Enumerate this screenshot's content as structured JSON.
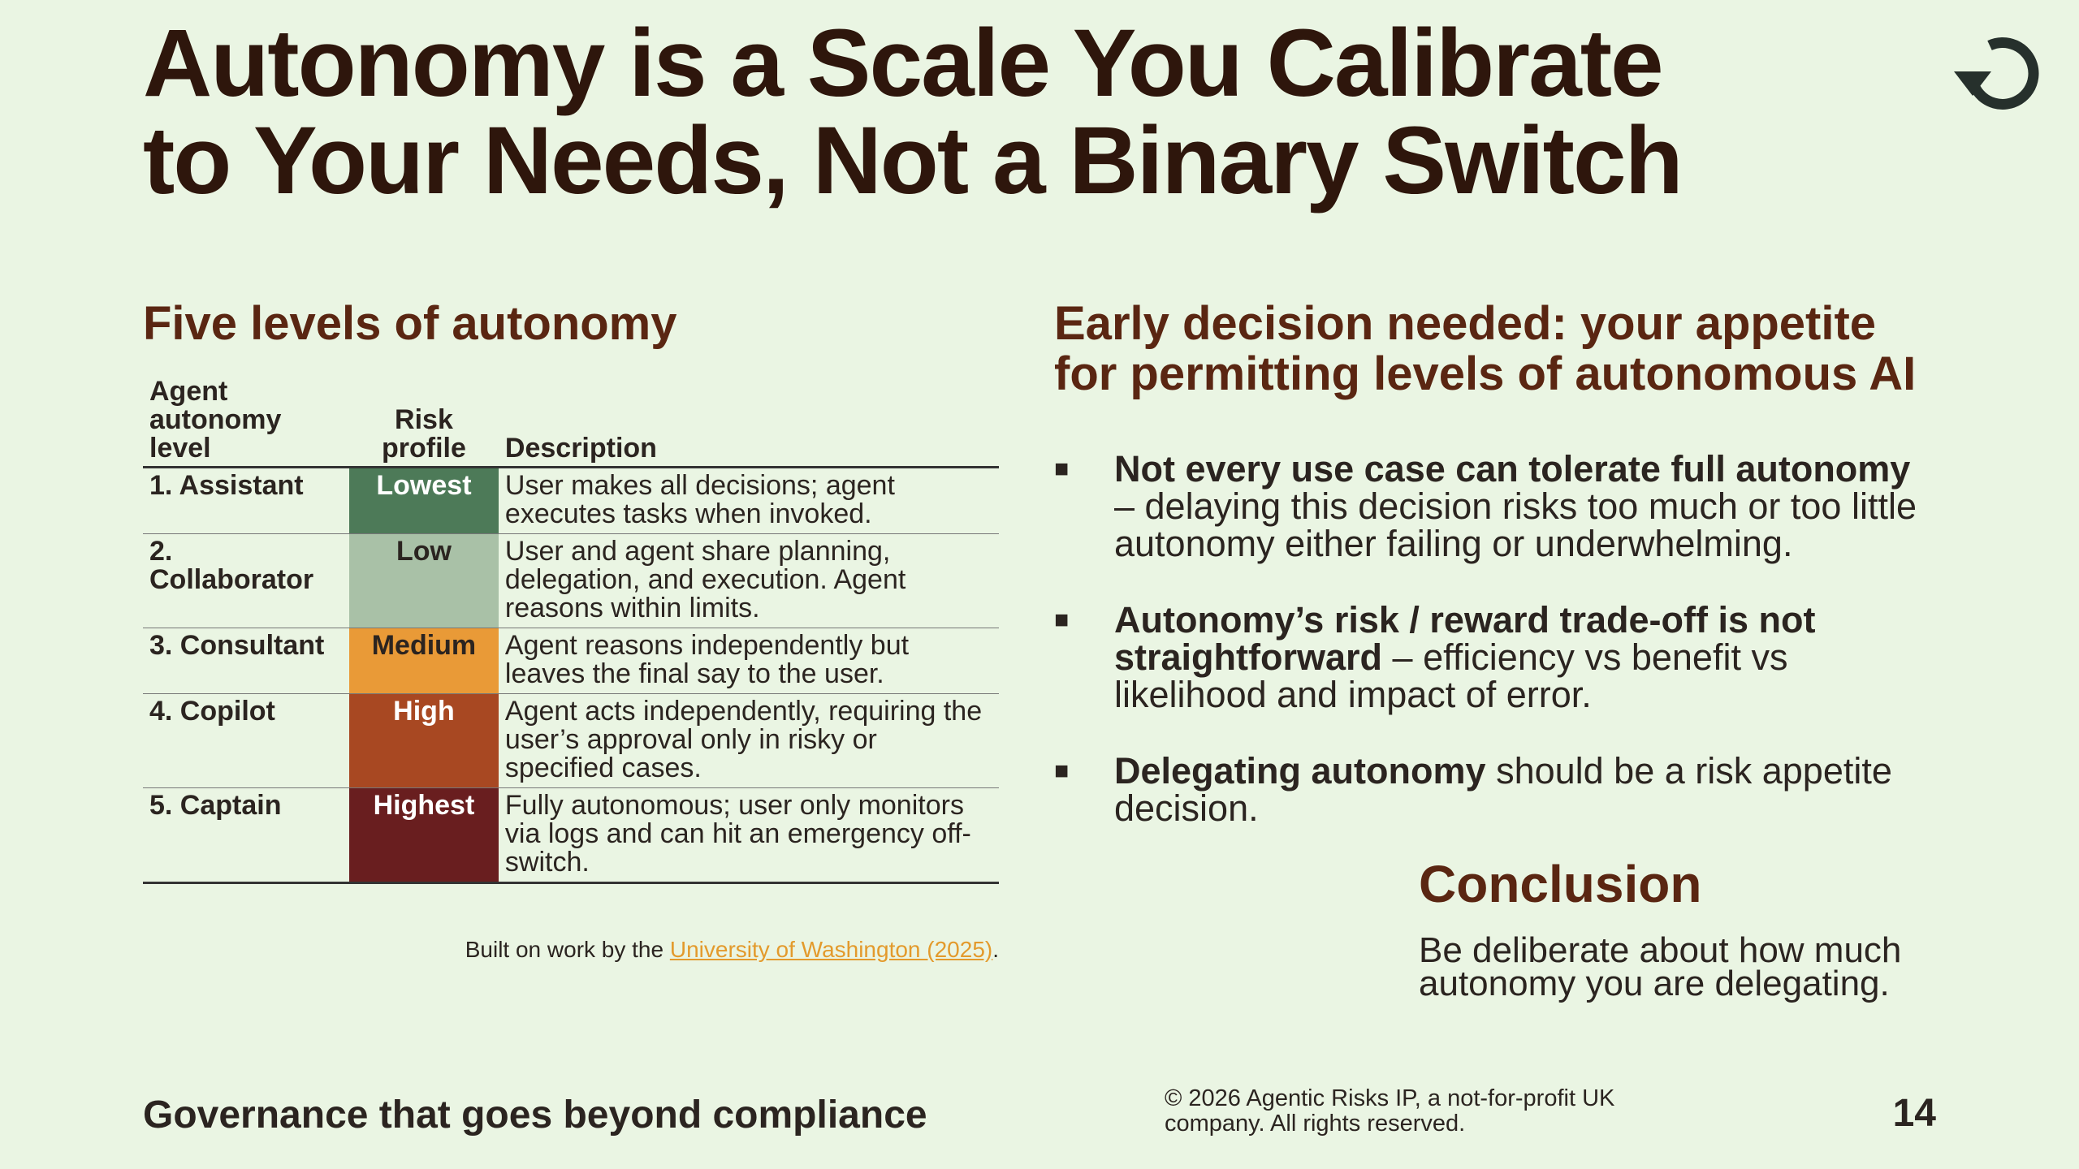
{
  "header": {
    "title_lines": [
      "Autonomy is a Scale You Calibrate",
      "to Your Needs, Not a Binary Switch"
    ]
  },
  "left": {
    "heading": "Five levels of autonomy",
    "table": {
      "columns": [
        "Agent autonomy level",
        "Risk profile",
        "Description"
      ],
      "rows": [
        [
          "1. Assistant",
          "Lowest",
          "User makes all decisions; agent executes tasks when invoked."
        ],
        [
          "2. Collaborator",
          "Low",
          "User and agent share planning, delegation, and execution. Agent reasons within limits."
        ],
        [
          "3. Consultant",
          "Medium",
          "Agent reasons independently but leaves the final say to the user."
        ],
        [
          "4. Copilot",
          "High",
          "Agent acts independently, requiring the user’s approval only in risky or specified cases."
        ],
        [
          "5. Captain",
          "Highest",
          "Fully autonomous; user only monitors via logs and can hit an emergency off-switch."
        ]
      ]
    },
    "footnote": {
      "prefix": "Built on work by the",
      "link": "University of Washington (2025)",
      "suffix": "."
    }
  },
  "right": {
    "heading_lines": [
      "Early decision needed: your appetite",
      "for permitting levels of autonomous AI"
    ],
    "bullets": [
      {
        "bold": "Not every use case can tolerate full autonomy",
        "rest": "– delaying this decision risks too much or too little autonomy either failing or underwhelming."
      },
      {
        "bold": "Autonomy’s risk / reward trade-off is not straightforward",
        "rest": "– efficiency vs benefit vs likelihood and impact of error."
      },
      {
        "bold": "Delegating autonomy",
        "rest": "should be a risk appetite decision."
      }
    ],
    "conclusion": {
      "heading": "Conclusion",
      "text": "Be deliberate about how much autonomy you are delegating."
    }
  },
  "footer": {
    "tagline": "Governance that goes beyond compliance",
    "copyright": "© 2026 Agentic Risks IP, a not-for-profit UK company. All rights reserved.",
    "page": "14"
  }
}
